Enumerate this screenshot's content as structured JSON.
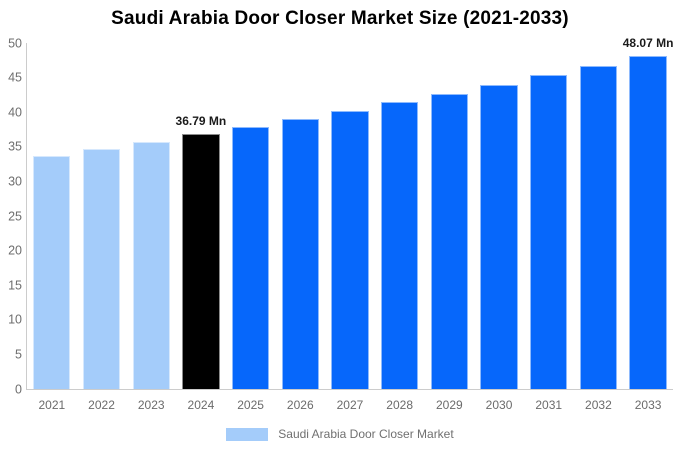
{
  "title": "Saudi Arabia Door Closer Market Size (2021-2033)",
  "legend": {
    "label": "Saudi Arabia Door Closer Market",
    "swatch_color": "#a4ccfa"
  },
  "colors": {
    "historical_bar": "#a4ccfa",
    "base_year_bar": "#000000",
    "forecast_bar": "#0667fb",
    "axis_line": "#cccccc",
    "tick_text": "#6e6e6e",
    "annotation_text": "#1b1b1b"
  },
  "chart_data": {
    "type": "bar",
    "title": "Saudi Arabia Door Closer Market Size (2021-2033)",
    "categories": [
      "2021",
      "2022",
      "2023",
      "2024",
      "2025",
      "2026",
      "2027",
      "2028",
      "2029",
      "2030",
      "2031",
      "2032",
      "2033"
    ],
    "values": [
      33.65,
      34.66,
      35.71,
      36.79,
      37.9,
      39.05,
      40.23,
      41.44,
      42.7,
      43.99,
      45.31,
      46.68,
      48.07
    ],
    "bar_colors": [
      "#a4ccfa",
      "#a4ccfa",
      "#a4ccfa",
      "#000000",
      "#0667fb",
      "#0667fb",
      "#0667fb",
      "#0667fb",
      "#0667fb",
      "#0667fb",
      "#0667fb",
      "#0667fb",
      "#0667fb"
    ],
    "annotations": [
      {
        "index": 3,
        "text": "36.79 Mn"
      },
      {
        "index": 12,
        "text": "48.07 Mn"
      }
    ],
    "unit": "Mn",
    "xlabel": "",
    "ylabel": "",
    "ylim": [
      0,
      50
    ],
    "yticks": [
      0,
      5,
      10,
      15,
      20,
      25,
      30,
      35,
      40,
      45,
      50
    ],
    "grid": false,
    "legend_entries": [
      "Saudi Arabia Door Closer Market"
    ],
    "legend_position": "bottom"
  }
}
